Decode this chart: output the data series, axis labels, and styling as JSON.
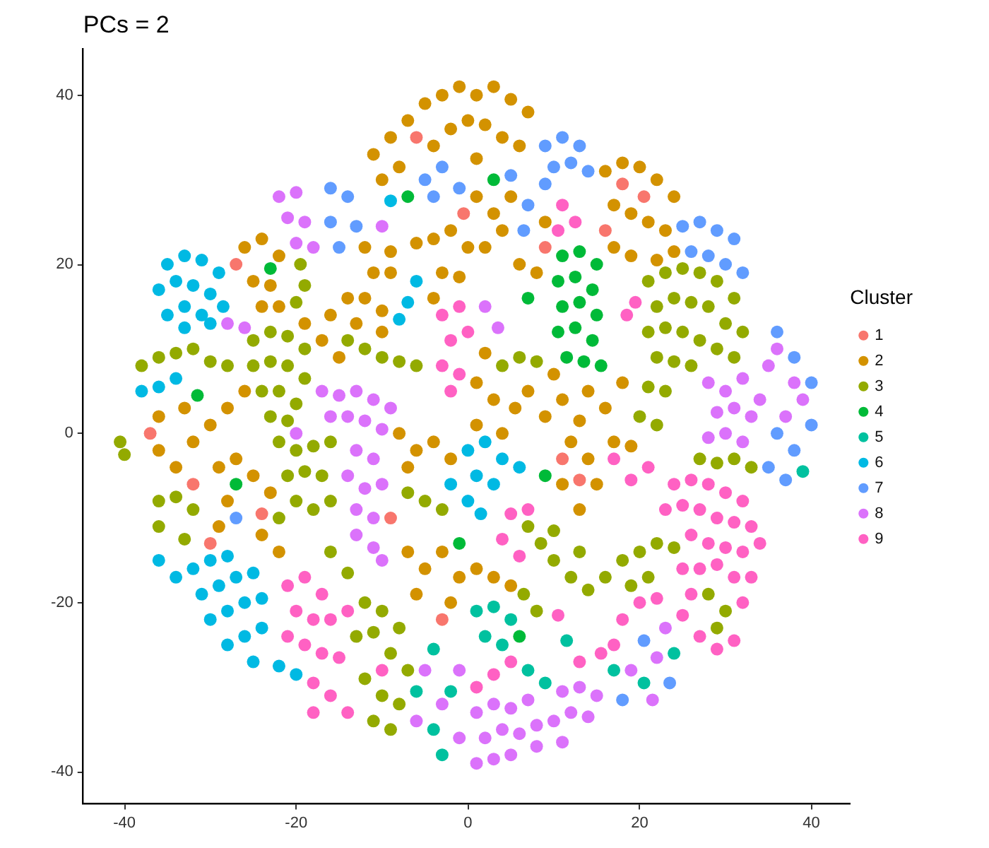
{
  "chart_data": {
    "type": "scatter",
    "title": "PCs = 2",
    "legend_title": "Cluster",
    "legend": "right",
    "marker": "circle",
    "xlim": [
      -44.8,
      44.5
    ],
    "ylim": [
      -43.8,
      45.5
    ],
    "xticks": [
      -40,
      -20,
      0,
      20,
      40
    ],
    "yticks": [
      -40,
      -20,
      0,
      20,
      40
    ],
    "series": [
      {
        "name": "1",
        "color": "#f8766d",
        "x": [
          -27,
          -24,
          -30,
          -6,
          18,
          20.5,
          13,
          -37,
          -9,
          -0.5,
          11,
          -32,
          9,
          -3,
          16
        ],
        "values": [
          20,
          -9.5,
          -13,
          35,
          29.5,
          28,
          -5.5,
          0,
          -10,
          26,
          -3,
          -6,
          22,
          -22,
          24
        ]
      },
      {
        "name": "2",
        "color": "#d39200",
        "x": [
          -11,
          -9,
          -7,
          -5,
          -3,
          -1,
          1,
          3,
          5,
          7,
          -2,
          0,
          2,
          4,
          -4,
          -8,
          -10,
          6,
          1,
          -12,
          -9,
          -6,
          -4,
          -2,
          0,
          -11,
          -9,
          -3,
          -1,
          -12,
          -10,
          -4,
          -13,
          -10,
          16,
          18,
          20,
          22,
          24,
          17,
          19,
          21,
          23,
          17,
          19,
          22,
          24,
          1,
          3,
          2,
          4,
          6,
          8,
          5,
          9,
          18,
          14,
          16,
          13,
          1,
          3,
          1,
          4,
          5.5,
          7,
          9,
          11,
          10,
          2,
          -29,
          -27,
          -25,
          -23,
          -28,
          -24,
          -22,
          -29,
          -36,
          -33,
          -36,
          -34,
          -32,
          -30,
          -28,
          -26,
          -26,
          -24,
          -22,
          -25,
          -23,
          -22,
          -24,
          -19,
          -17,
          -15,
          -16,
          -14,
          12,
          14,
          11,
          13,
          15,
          17,
          19,
          1,
          3,
          5,
          -8,
          -6,
          -4,
          -2,
          -7,
          -7,
          -5,
          -3,
          -1,
          -6,
          -2
        ],
        "values": [
          33,
          35,
          37,
          39,
          40,
          41,
          40,
          41,
          39.5,
          38,
          36,
          37,
          36.5,
          35,
          34,
          31.5,
          30,
          34,
          32.5,
          22,
          21.5,
          22.5,
          23,
          24,
          22,
          19,
          19,
          19,
          18.5,
          16,
          14.5,
          16,
          13,
          12,
          31,
          32,
          31.5,
          30,
          28,
          27,
          26,
          25,
          24,
          22,
          21,
          20.5,
          21.5,
          28,
          26,
          22,
          24,
          20,
          19,
          28,
          25,
          6,
          5,
          3,
          1.5,
          6,
          4,
          1,
          0,
          3,
          5,
          2,
          4,
          7,
          9.5,
          -4,
          -3,
          -5,
          -7,
          -8,
          -12,
          -14,
          -11,
          2,
          3,
          -2,
          -4,
          -1,
          1,
          3,
          5,
          22,
          23,
          21,
          18,
          17.5,
          15,
          15,
          13,
          11,
          9,
          14,
          16,
          -1,
          -3,
          -6,
          -9,
          -6,
          -1,
          -1.5,
          -16,
          -17,
          -18,
          0,
          -2,
          -1,
          -3,
          -4,
          -14,
          -16,
          -14,
          -17,
          -19,
          -20
        ]
      },
      {
        "name": "3",
        "color": "#93aa00",
        "x": [
          21,
          23,
          25,
          27,
          29,
          31,
          22,
          24,
          26,
          28,
          30,
          32,
          21,
          23,
          25,
          27,
          29,
          31,
          22,
          24,
          26,
          21,
          23,
          20,
          22,
          -25,
          -23,
          -21,
          -19,
          -25,
          -23,
          -21,
          -19,
          -24,
          -22,
          -20,
          -23,
          -21,
          -19.5,
          -19,
          -20,
          -38,
          -36,
          -34,
          -32,
          -30,
          -28,
          -14,
          -12,
          -10,
          -8,
          -6,
          -22,
          -20,
          -18,
          -16,
          -21,
          -19,
          -17,
          -20,
          -18,
          -16,
          -22,
          -36,
          -34,
          -32,
          -36,
          -33,
          -16,
          -14,
          -12,
          -10,
          -13,
          -11,
          -8,
          -9,
          -7,
          -12,
          -10,
          -8,
          -11,
          -9,
          -40.5,
          -40,
          7,
          8.5,
          10,
          12,
          14,
          16,
          18,
          20,
          22,
          24,
          21,
          19,
          10,
          13,
          6.5,
          8,
          28,
          30,
          29,
          27,
          29,
          31,
          33,
          -7,
          -5,
          -3,
          4,
          6,
          8
        ],
        "values": [
          18,
          19,
          19.5,
          19,
          18,
          16,
          15,
          16,
          15.5,
          15,
          13,
          12,
          12,
          12.5,
          12,
          11,
          10,
          9,
          9,
          8.5,
          8,
          5.5,
          5,
          2,
          1,
          11,
          12,
          11.5,
          10,
          8,
          8.5,
          8,
          6.5,
          5,
          5,
          3.5,
          2,
          1.5,
          20,
          17.5,
          15.5,
          8,
          9,
          9.5,
          10,
          8.5,
          8,
          11,
          10,
          9,
          8.5,
          8,
          -1,
          -2,
          -1.5,
          -1,
          -5,
          -4.5,
          -5,
          -8,
          -9,
          -8,
          -10,
          -8,
          -7.5,
          -9,
          -11,
          -12.5,
          -14,
          -16.5,
          -20,
          -21,
          -24,
          -23.5,
          -23,
          -26,
          -28,
          -29,
          -31,
          -32,
          -34,
          -35,
          -1,
          -2.5,
          -11,
          -13,
          -15,
          -17,
          -18.5,
          -17,
          -15,
          -14,
          -13,
          -13.5,
          -17,
          -18,
          -11.5,
          -14,
          -19,
          -21,
          -19,
          -21,
          -23,
          -3,
          -3.5,
          -3,
          -4,
          -7,
          -8,
          -9,
          8,
          9,
          8.5
        ]
      },
      {
        "name": "4",
        "color": "#00ba38",
        "x": [
          11,
          13,
          15,
          10.5,
          12.5,
          14.5,
          11,
          13,
          15,
          10.5,
          12.5,
          14.5,
          11.5,
          13.5,
          15.5,
          -23,
          -27,
          -7,
          3,
          -1,
          9,
          -31.5,
          6,
          7
        ],
        "values": [
          21,
          21.5,
          20,
          18,
          18.5,
          17,
          15,
          15.5,
          14,
          12,
          12.5,
          11,
          9,
          8.5,
          8,
          19.5,
          -6,
          28,
          30,
          -13,
          -5,
          4.5,
          -24,
          16
        ]
      },
      {
        "name": "5",
        "color": "#00c19f",
        "x": [
          -4,
          -6,
          -2,
          -4,
          -3,
          1,
          3,
          5,
          2,
          4,
          7,
          9,
          17,
          20.5,
          24,
          11.5,
          39
        ],
        "values": [
          -25.5,
          -30.5,
          -30.5,
          -35,
          -38,
          -21,
          -20.5,
          -22,
          -24,
          -25,
          -28,
          -29.5,
          -28,
          -29.5,
          -26,
          -24.5,
          -4.5
        ]
      },
      {
        "name": "6",
        "color": "#00b9e3",
        "x": [
          -35,
          -33,
          -31,
          -29,
          -36,
          -34,
          -32,
          -30,
          -28.5,
          -35,
          -33,
          -31,
          -33,
          -30,
          -38,
          -36,
          -34,
          -36,
          -34,
          -32,
          -30,
          -28,
          -31,
          -29,
          -27,
          -25,
          -30,
          -28,
          -26,
          -24,
          -28,
          -26,
          -24,
          -25,
          -22,
          -20,
          -6,
          -7,
          -8,
          -9,
          0,
          2,
          4,
          1,
          3,
          6,
          0,
          -2,
          1.5
        ],
        "values": [
          20,
          21,
          20.5,
          19,
          17,
          18,
          17.5,
          16.5,
          15,
          14,
          15,
          14,
          12.5,
          13,
          5,
          5.5,
          6.5,
          -15,
          -17,
          -16,
          -15,
          -14.5,
          -19,
          -18,
          -17,
          -16.5,
          -22,
          -21,
          -20,
          -19.5,
          -25,
          -24,
          -23,
          -27,
          -27.5,
          -28.5,
          18,
          15.5,
          13.5,
          27.5,
          -2,
          -1,
          -3,
          -5,
          -6,
          -4,
          -8,
          -6,
          -9.5
        ]
      },
      {
        "name": "7",
        "color": "#619cff",
        "x": [
          9,
          11,
          13,
          10,
          12,
          14,
          9,
          25,
          27,
          29,
          31,
          26,
          28,
          30,
          32,
          -5,
          -3,
          -1,
          -4,
          -16,
          -14,
          -16,
          -13,
          -15,
          36,
          38,
          40,
          36,
          38,
          35,
          40,
          37,
          20.5,
          23.5,
          18,
          7,
          6.5,
          5,
          -27
        ],
        "values": [
          34,
          35,
          34,
          31.5,
          32,
          31,
          29.5,
          24.5,
          25,
          24,
          23,
          21.5,
          21,
          20,
          19,
          30,
          31.5,
          29,
          28,
          29,
          28,
          25,
          24.5,
          22,
          12,
          9,
          6,
          0,
          -2,
          -4,
          1,
          -5.5,
          -24.5,
          -29.5,
          -31.5,
          27,
          24,
          30.5,
          -10
        ]
      },
      {
        "name": "8",
        "color": "#db72fb",
        "x": [
          -22,
          -20,
          -21,
          -19,
          -18,
          -20,
          -28,
          -26,
          -17,
          -15,
          -13,
          -11,
          -9,
          -16,
          -14,
          -12,
          -10,
          -20,
          -13,
          -11,
          -14,
          -12,
          -10,
          -13,
          -11,
          -13,
          -11,
          -10,
          -10,
          28,
          30,
          32,
          29,
          31,
          33,
          28,
          30,
          32,
          34,
          35,
          36,
          38,
          37,
          39,
          1,
          3,
          5,
          7,
          11,
          13,
          15,
          2,
          4,
          6,
          8,
          10,
          12,
          14,
          3,
          5,
          8,
          11,
          1,
          -5,
          -1,
          -3,
          -6,
          -1,
          23,
          22,
          19,
          21.5,
          2,
          3.5
        ],
        "values": [
          28,
          28.5,
          25.5,
          25,
          22,
          22.5,
          13,
          12.5,
          5,
          4.5,
          5,
          4,
          3,
          2,
          2,
          1.5,
          0.5,
          0,
          -2,
          -3,
          -5,
          -6.5,
          -6,
          -9,
          -10,
          -12,
          -13.5,
          -15,
          24.5,
          6,
          5,
          6.5,
          2.5,
          3,
          2,
          -0.5,
          0,
          -1,
          4,
          8,
          10,
          6,
          2,
          4,
          -33,
          -32,
          -32.5,
          -31.5,
          -30.5,
          -30,
          -31,
          -36,
          -35,
          -35.5,
          -34.5,
          -34,
          -33,
          -33.5,
          -38.5,
          -38,
          -37,
          -36.5,
          -39,
          -28,
          -28,
          -32,
          -34,
          -36,
          -23,
          -26.5,
          -28,
          -31.5,
          15,
          12.5
        ]
      },
      {
        "name": "9",
        "color": "#ff61c3",
        "x": [
          24,
          26,
          28,
          30,
          32,
          23,
          25,
          27,
          29,
          31,
          33,
          26,
          28,
          30,
          32,
          34,
          25,
          27,
          29,
          31,
          33,
          26,
          32,
          25,
          27,
          31,
          29,
          -21,
          -19,
          -17,
          -20,
          -18,
          -16,
          -21,
          -19,
          -17,
          -15,
          -18,
          -14,
          -16,
          -14,
          -18,
          -10,
          -3,
          -1,
          -2,
          0,
          -3,
          -1,
          -2,
          11,
          12.5,
          10.5,
          17,
          19,
          21,
          18.5,
          19.5,
          5,
          7,
          4,
          6,
          20,
          18,
          17,
          22,
          1,
          3,
          5,
          10.5,
          13,
          15.5
        ],
        "values": [
          -6,
          -5.5,
          -6,
          -7,
          -8,
          -9,
          -8.5,
          -9,
          -10,
          -10.5,
          -11,
          -12,
          -13,
          -13.5,
          -14,
          -13,
          -16,
          -16,
          -15.5,
          -17,
          -17,
          -19,
          -20,
          -21.5,
          -24,
          -24.5,
          -25.5,
          -18,
          -17,
          -19,
          -21,
          -22,
          -22,
          -24,
          -25,
          -26,
          -26.5,
          -29.5,
          -21,
          -31,
          -33,
          -33,
          -28,
          14,
          15,
          11,
          12,
          8,
          7,
          5,
          27,
          25,
          24,
          -3,
          -5.5,
          -4,
          14,
          15.5,
          -9.5,
          -9,
          -12.5,
          -14.5,
          -20,
          -22,
          -25,
          -19.5,
          -30,
          -28.5,
          -27,
          -21.5,
          -27,
          -26
        ]
      }
    ]
  }
}
